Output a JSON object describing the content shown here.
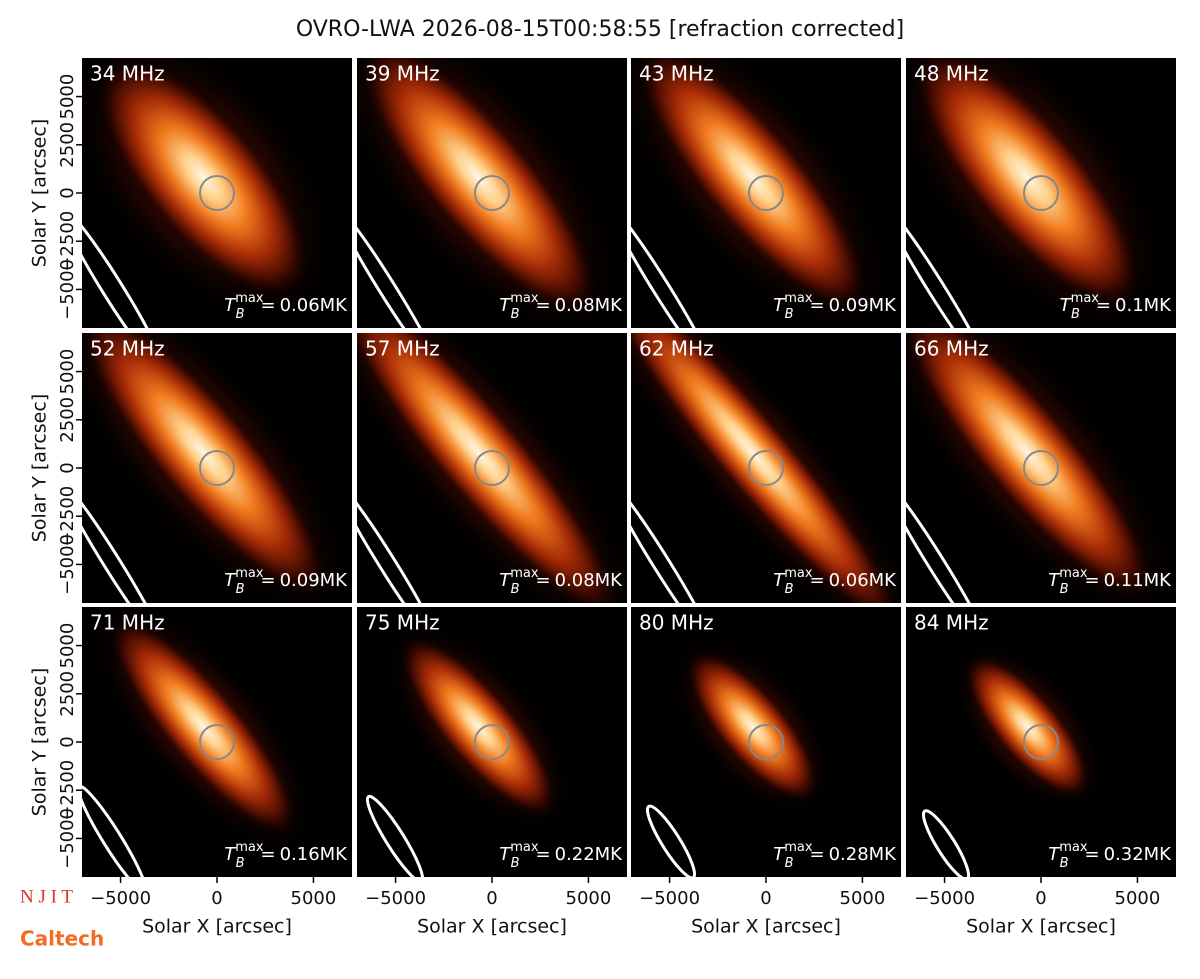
{
  "title": "OVRO-LWA 2026-08-15T00:58:55 [refraction corrected]",
  "xlabel": "Solar X [arcsec]",
  "ylabel": "Solar Y [arcsec]",
  "xlim": [
    -7000,
    7000
  ],
  "ylim": [
    -7000,
    7000
  ],
  "xticks": [
    {
      "value": -5000,
      "label": "−5000"
    },
    0,
    5000
  ],
  "yticks": [
    {
      "value": -5000,
      "label": "−5000"
    },
    {
      "value": -2500,
      "label": "−2500"
    },
    0,
    2500,
    5000
  ],
  "logos": [
    "N J I T",
    "Caltech"
  ],
  "chart_data": [
    {
      "type": "image",
      "title": "34 MHz",
      "tmax": {
        "symbol": "T",
        "sub": "B",
        "sup": "max",
        "eq": "=",
        "value": 0.06,
        "unit": "MK"
      }
    },
    {
      "type": "image",
      "title": "39 MHz",
      "tmax": {
        "symbol": "T",
        "sub": "B",
        "sup": "max",
        "eq": "=",
        "value": 0.08,
        "unit": "MK"
      }
    },
    {
      "type": "image",
      "title": "43 MHz",
      "tmax": {
        "symbol": "T",
        "sub": "B",
        "sup": "max",
        "eq": "=",
        "value": 0.09,
        "unit": "MK"
      }
    },
    {
      "type": "image",
      "title": "48 MHz",
      "tmax": {
        "symbol": "T",
        "sub": "B",
        "sup": "max",
        "eq": "=",
        "value": 0.1,
        "unit": "MK"
      }
    },
    {
      "type": "image",
      "title": "52 MHz",
      "tmax": {
        "symbol": "T",
        "sub": "B",
        "sup": "max",
        "eq": "=",
        "value": 0.09,
        "unit": "MK"
      }
    },
    {
      "type": "image",
      "title": "57 MHz",
      "tmax": {
        "symbol": "T",
        "sub": "B",
        "sup": "max",
        "eq": "=",
        "value": 0.08,
        "unit": "MK"
      }
    },
    {
      "type": "image",
      "title": "62 MHz",
      "tmax": {
        "symbol": "T",
        "sub": "B",
        "sup": "max",
        "eq": "=",
        "value": 0.06,
        "unit": "MK"
      }
    },
    {
      "type": "image",
      "title": "66 MHz",
      "tmax": {
        "symbol": "T",
        "sub": "B",
        "sup": "max",
        "eq": "=",
        "value": 0.11,
        "unit": "MK"
      }
    },
    {
      "type": "image",
      "title": "71 MHz",
      "tmax": {
        "symbol": "T",
        "sub": "B",
        "sup": "max",
        "eq": "=",
        "value": 0.16,
        "unit": "MK"
      }
    },
    {
      "type": "image",
      "title": "75 MHz",
      "tmax": {
        "symbol": "T",
        "sub": "B",
        "sup": "max",
        "eq": "=",
        "value": 0.22,
        "unit": "MK"
      }
    },
    {
      "type": "image",
      "title": "80 MHz",
      "tmax": {
        "symbol": "T",
        "sub": "B",
        "sup": "max",
        "eq": "=",
        "value": 0.28,
        "unit": "MK"
      }
    },
    {
      "type": "image",
      "title": "84 MHz",
      "tmax": {
        "symbol": "T",
        "sub": "B",
        "sup": "max",
        "eq": "=",
        "value": 0.32,
        "unit": "MK"
      }
    }
  ]
}
